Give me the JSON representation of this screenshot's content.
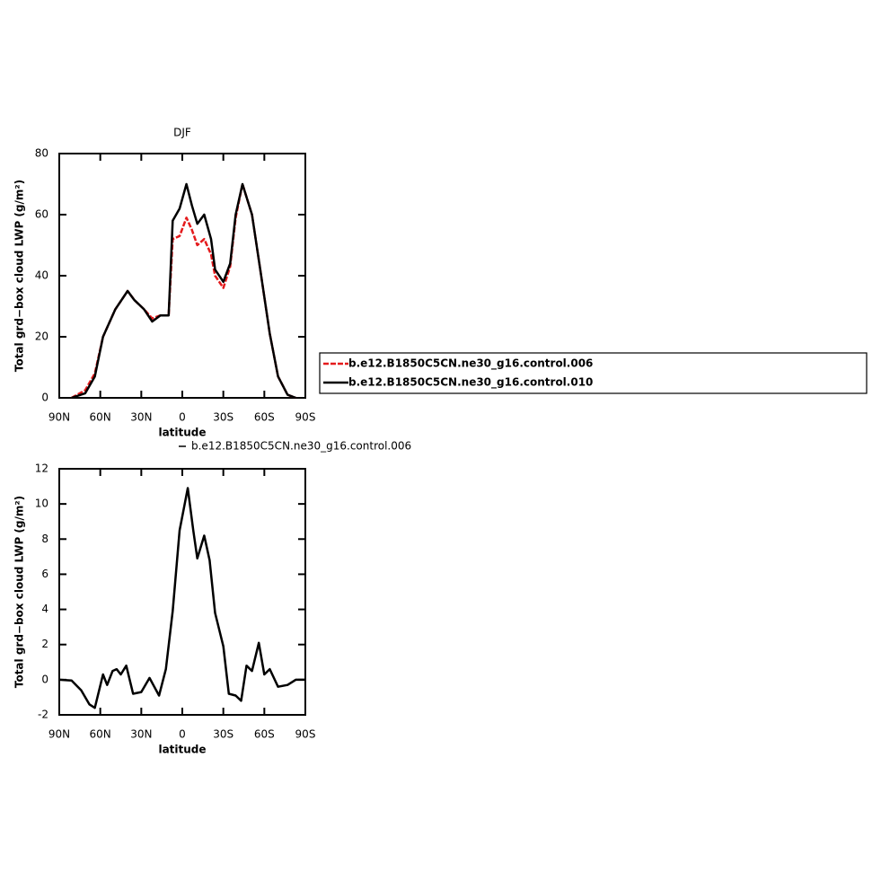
{
  "chart_data": [
    {
      "type": "line",
      "title": "DJF",
      "xlabel": "latitude",
      "ylabel": "Total grd−box cloud LWP (g/m²)",
      "x": [
        81,
        71,
        64,
        58,
        49,
        40,
        35,
        28,
        22,
        16,
        10,
        7,
        2,
        -3,
        -7,
        -11,
        -16,
        -21,
        -24,
        -30,
        -35,
        -39,
        -44,
        -51,
        -57,
        -64,
        -70,
        -77,
        -83
      ],
      "series": [
        {
          "name": "b.e12.B1850C5CN.ne30_g16.control.006",
          "color": "#e41a1c",
          "dashed": true,
          "values": [
            0,
            2.5,
            8,
            20,
            29,
            35,
            32,
            29,
            26,
            27,
            27,
            52,
            53,
            59,
            55,
            50,
            52,
            47,
            40,
            36,
            43,
            59,
            70,
            60,
            42,
            21,
            7,
            1,
            0
          ]
        },
        {
          "name": "b.e12.B1850C5CN.ne30_g16.control.010",
          "color": "#000000",
          "values": [
            0,
            1.5,
            7,
            20,
            29,
            35,
            32,
            29,
            25,
            27,
            27,
            58,
            62,
            70,
            63,
            57,
            60,
            52,
            42,
            38,
            44,
            60,
            70,
            60,
            42,
            21,
            7,
            1,
            0
          ]
        }
      ],
      "xlim": [
        90,
        -90
      ],
      "xticks": [
        {
          "value": 90,
          "label": "90N"
        },
        {
          "value": 60,
          "label": "60N"
        },
        {
          "value": 30,
          "label": "30N"
        },
        0,
        {
          "value": -30,
          "label": "30S"
        },
        {
          "value": -60,
          "label": "60S"
        },
        {
          "value": -90,
          "label": "90S"
        }
      ],
      "ylim": [
        0,
        80
      ],
      "yticks": [
        0,
        20,
        40,
        60,
        80
      ],
      "legend": "right"
    },
    {
      "type": "line",
      "xlabel": "latitude",
      "ylabel": "Total grd−box cloud LWP (g/m²)",
      "x": [
        90,
        81,
        74,
        68,
        64,
        58,
        55,
        51,
        48,
        45,
        41,
        36,
        30,
        24,
        17,
        12,
        7,
        2,
        -4,
        -8,
        -11,
        -16,
        -20,
        -24,
        -30,
        -34,
        -39,
        -43,
        -47,
        -51,
        -56,
        -60,
        -64,
        -70,
        -77,
        -83,
        -90
      ],
      "series": [
        {
          "name": "b.e12.B1850C5CN.ne30_g16.control.006",
          "color": "#000000",
          "values": [
            0,
            -0.05,
            -0.6,
            -1.4,
            -1.6,
            0.3,
            -0.3,
            0.5,
            0.6,
            0.3,
            0.8,
            -0.8,
            -0.7,
            0.1,
            -0.9,
            0.6,
            3.9,
            8.5,
            10.9,
            8.5,
            6.9,
            8.2,
            6.8,
            3.8,
            1.9,
            -0.8,
            -0.9,
            -1.2,
            0.8,
            0.5,
            2.1,
            0.3,
            0.6,
            -0.4,
            -0.3,
            0,
            0
          ]
        }
      ],
      "xlim": [
        90,
        -90
      ],
      "xticks": [
        {
          "value": 90,
          "label": "90N"
        },
        {
          "value": 60,
          "label": "60N"
        },
        {
          "value": 30,
          "label": "30N"
        },
        0,
        {
          "value": -30,
          "label": "30S"
        },
        {
          "value": -60,
          "label": "60S"
        },
        {
          "value": -90,
          "label": "90S"
        }
      ],
      "ylim": [
        -2,
        12
      ],
      "yticks": [
        -2,
        0,
        2,
        4,
        6,
        8,
        10,
        12
      ],
      "legend": "top"
    }
  ]
}
